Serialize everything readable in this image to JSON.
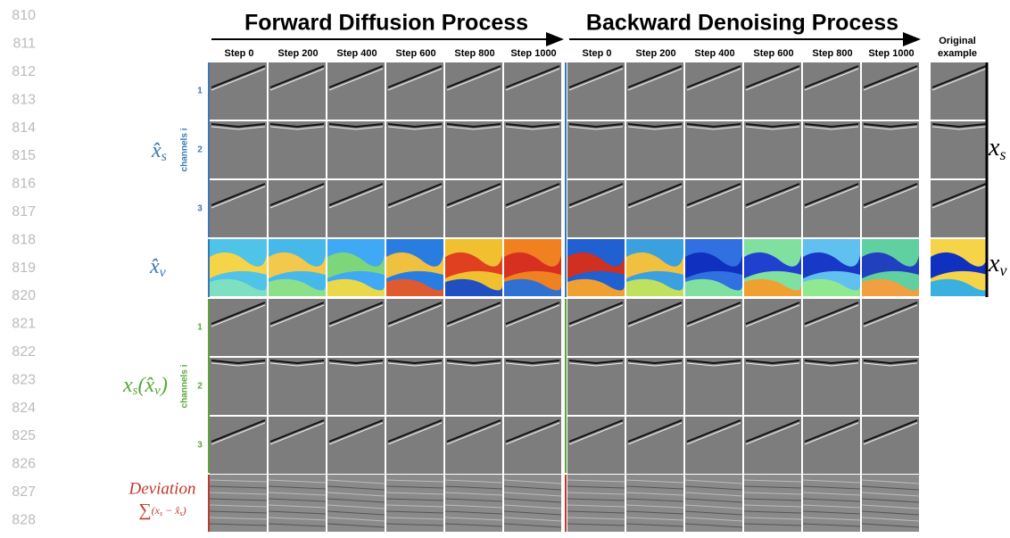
{
  "line_numbers": [
    "810",
    "811",
    "812",
    "813",
    "814",
    "815",
    "816",
    "817",
    "818",
    "819",
    "820",
    "821",
    "822",
    "823",
    "824",
    "825",
    "826",
    "827",
    "828"
  ],
  "header": {
    "forward_title": "Forward Diffusion Process",
    "backward_title": "Backward Denoising Process",
    "forward_steps": [
      "Step 0",
      "Step 200",
      "Step 400",
      "Step 600",
      "Step 800",
      "Step 1000"
    ],
    "backward_steps": [
      "Step 0",
      "Step 200",
      "Step 400",
      "Step 600",
      "Step 800",
      "Step 1000"
    ],
    "original_label": [
      "Original",
      "example"
    ]
  },
  "rows": {
    "xs_hat": {
      "base": "x̂",
      "sub": "s",
      "axis": "channels i",
      "channels": [
        "1",
        "2",
        "3"
      ]
    },
    "xv_hat": {
      "base": "x̂",
      "sub": "v"
    },
    "xs_of_xv": {
      "parts": [
        "x",
        "s",
        "(x̂",
        "v",
        ")"
      ],
      "axis": "channels i",
      "channels": [
        "1",
        "2",
        "3"
      ]
    },
    "deviation": {
      "title": "Deviation",
      "parts": [
        "∑",
        "(x",
        "s",
        " − x̂",
        "s",
        ")"
      ]
    }
  },
  "original": {
    "xs": {
      "base": "x",
      "sub": "s"
    },
    "xv": {
      "base": "x",
      "sub": "v"
    }
  }
}
